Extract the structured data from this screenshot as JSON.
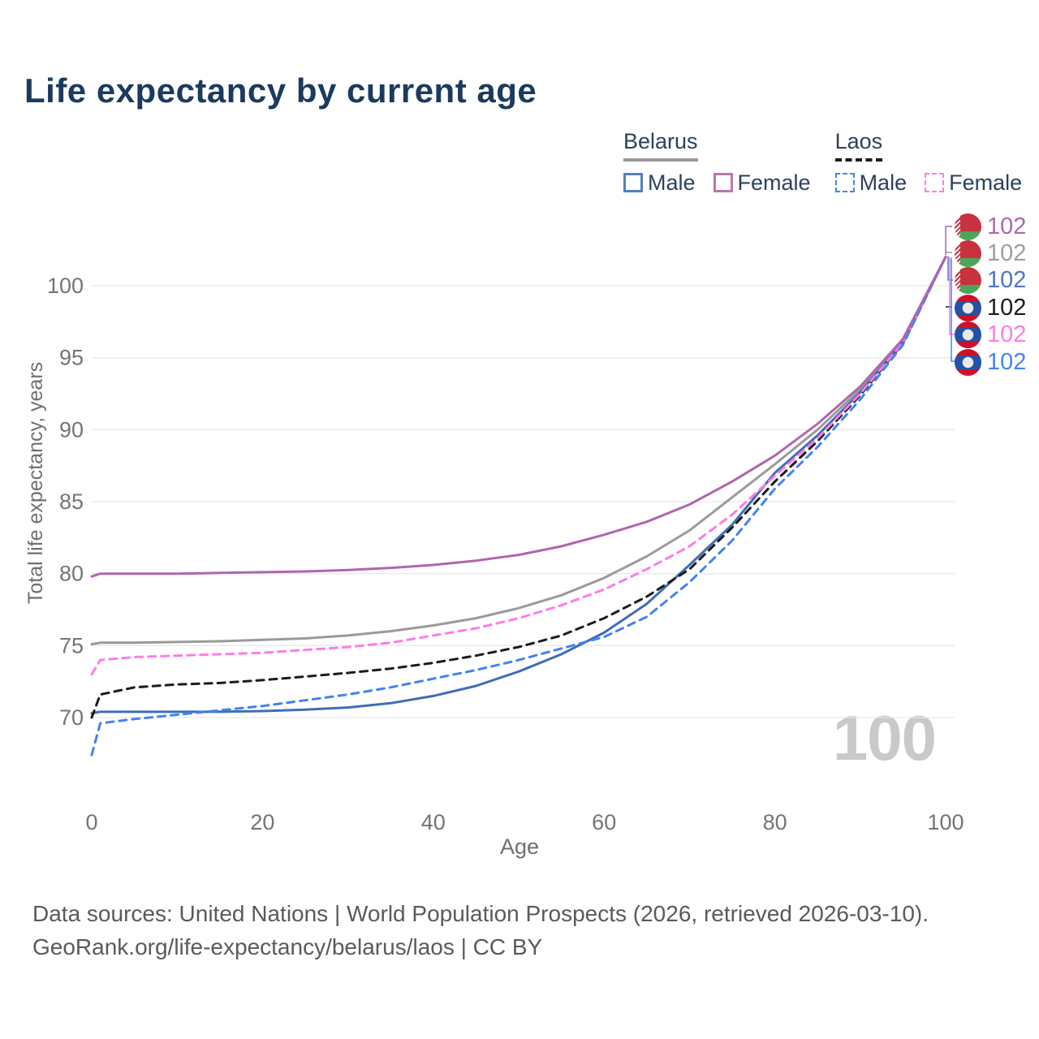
{
  "title": "Life expectancy by current age",
  "watermark_hover_age": "100",
  "legend": {
    "groups": [
      {
        "label": "Belarus",
        "line_style": "solid",
        "underline_color": "#9a9a9a",
        "items": [
          {
            "label": "Male",
            "color": "#5580bd",
            "dashed": false
          },
          {
            "label": "Female",
            "color": "#b779ae",
            "dashed": false
          }
        ]
      },
      {
        "label": "Laos",
        "line_style": "dashed",
        "underline_color": "#1b1b1b",
        "items": [
          {
            "label": "Male",
            "color": "#4585f5",
            "dashed": true
          },
          {
            "label": "Female",
            "color": "#ff7ce6",
            "dashed": true
          }
        ]
      }
    ]
  },
  "chart_data": {
    "type": "line",
    "title": "Life expectancy by current age",
    "xlabel": "Age",
    "ylabel": "Total life expectancy, years",
    "xlim": [
      0,
      100
    ],
    "ylim": [
      66,
      103
    ],
    "x_ticks": [
      0,
      20,
      40,
      60,
      80,
      100
    ],
    "y_ticks": [
      70,
      75,
      80,
      85,
      90,
      95,
      100
    ],
    "grid": "horizontal",
    "legend_position": "top-right",
    "x": [
      0,
      1,
      5,
      10,
      15,
      20,
      25,
      30,
      35,
      40,
      45,
      50,
      55,
      60,
      65,
      70,
      75,
      80,
      85,
      90,
      95,
      100
    ],
    "series": [
      {
        "name": "Belarus total",
        "color": "#9a9a9a",
        "dashed": false,
        "values": [
          75.1,
          75.2,
          75.2,
          75.25,
          75.3,
          75.4,
          75.5,
          75.7,
          76.0,
          76.4,
          76.9,
          77.6,
          78.5,
          79.7,
          81.2,
          83.0,
          85.3,
          87.6,
          90.0,
          92.8,
          96.2,
          102
        ]
      },
      {
        "name": "Belarus male",
        "color": "#3f6db6",
        "dashed": false,
        "values": [
          70.3,
          70.4,
          70.4,
          70.4,
          70.4,
          70.45,
          70.55,
          70.7,
          71.0,
          71.5,
          72.2,
          73.2,
          74.4,
          75.9,
          77.9,
          80.6,
          83.4,
          87.0,
          89.6,
          92.6,
          96.1,
          102
        ]
      },
      {
        "name": "Laos total",
        "color": "#1b1b1b",
        "dashed": true,
        "values": [
          70.0,
          71.6,
          72.1,
          72.3,
          72.4,
          72.6,
          72.85,
          73.1,
          73.4,
          73.8,
          74.3,
          74.9,
          75.7,
          76.9,
          78.4,
          80.3,
          83.2,
          86.4,
          89.2,
          92.4,
          96.0,
          102
        ]
      },
      {
        "name": "Laos female",
        "color": "#ff7ce6",
        "dashed": true,
        "values": [
          73.0,
          74.0,
          74.2,
          74.3,
          74.4,
          74.5,
          74.7,
          74.9,
          75.2,
          75.7,
          76.2,
          76.9,
          77.8,
          78.9,
          80.3,
          81.9,
          84.1,
          86.8,
          89.4,
          92.5,
          96.05,
          102
        ]
      },
      {
        "name": "Laos male",
        "color": "#4083f2",
        "dashed": true,
        "values": [
          67.4,
          69.6,
          69.9,
          70.2,
          70.5,
          70.8,
          71.2,
          71.6,
          72.1,
          72.7,
          73.3,
          74.0,
          74.8,
          75.6,
          77.0,
          79.4,
          82.3,
          85.9,
          88.8,
          92.1,
          95.9,
          102
        ]
      },
      {
        "name": "Belarus female",
        "color": "#b066ae",
        "dashed": false,
        "values": [
          79.8,
          80.0,
          80.0,
          80.0,
          80.05,
          80.1,
          80.15,
          80.25,
          80.4,
          80.6,
          80.9,
          81.3,
          81.9,
          82.7,
          83.6,
          84.8,
          86.4,
          88.2,
          90.4,
          93.0,
          96.3,
          102
        ]
      }
    ]
  },
  "end_labels": [
    {
      "series": "Belarus female",
      "flag": "belarus",
      "value": "102",
      "color": "#b066ae"
    },
    {
      "series": "Belarus total",
      "flag": "belarus",
      "value": "102",
      "color": "#9e9e9e"
    },
    {
      "series": "Belarus male",
      "flag": "belarus",
      "value": "102",
      "color": "#4b76c8"
    },
    {
      "series": "Laos total",
      "flag": "laos",
      "value": "102",
      "color": "#1b1b1b"
    },
    {
      "series": "Laos female",
      "flag": "laos",
      "value": "102",
      "color": "#ff7ce6"
    },
    {
      "series": "Laos male",
      "flag": "laos",
      "value": "102",
      "color": "#4585f5"
    }
  ],
  "footer": {
    "line1": "Data sources: United Nations | World Population Prospects (2026, retrieved 2026-03-10).",
    "line2": "GeoRank.org/life-expectancy/belarus/laos | CC BY"
  }
}
